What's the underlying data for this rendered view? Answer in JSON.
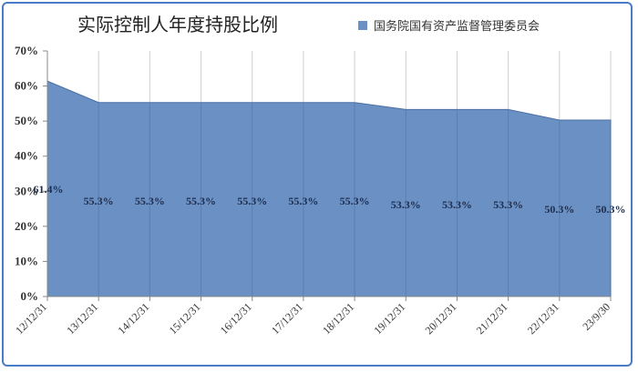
{
  "chart_data": {
    "type": "area",
    "title": "实际控制人年度持股比例",
    "series": [
      {
        "name": "国务院国有资产监督管理委员会",
        "values": [
          61.4,
          55.3,
          55.3,
          55.3,
          55.3,
          55.3,
          55.3,
          53.3,
          53.3,
          53.3,
          50.3,
          50.3
        ],
        "labels": [
          "61.4%",
          "55.3%",
          "55.3%",
          "55.3%",
          "55.3%",
          "55.3%",
          "55.3%",
          "53.3%",
          "53.3%",
          "53.3%",
          "50.3%",
          "50.3%"
        ]
      }
    ],
    "categories": [
      "12/12/31",
      "13/12/31",
      "14/12/31",
      "15/12/31",
      "16/12/31",
      "17/12/31",
      "18/12/31",
      "19/12/31",
      "20/12/31",
      "21/12/31",
      "22/12/31",
      "23/9/30"
    ],
    "yticks": [
      "0%",
      "10%",
      "20%",
      "30%",
      "40%",
      "50%",
      "60%",
      "70%"
    ],
    "ylim": [
      0,
      70
    ],
    "xlabel": "",
    "ylabel": "",
    "grid": "vertical",
    "legend_position": "top-right",
    "colors": {
      "fill": "#6a90c4",
      "stroke": "#4a6fa5",
      "grid": "#cfcfcf",
      "frame": "#4a7bc8"
    }
  }
}
